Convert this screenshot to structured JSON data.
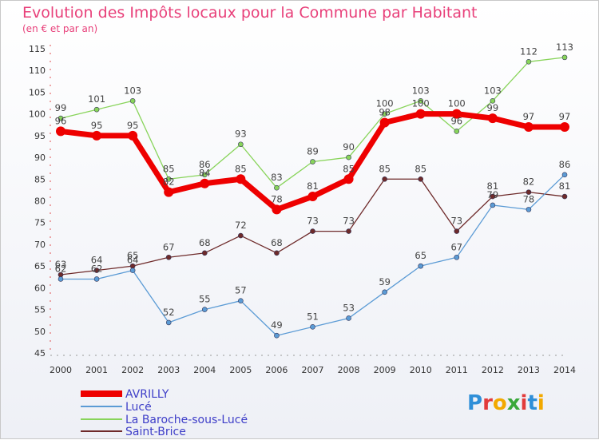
{
  "title": "Evolution des Impôts locaux pour la Commune par Habitant",
  "subtitle": "(en € et par an)",
  "logo": {
    "text": "Proxiti",
    "colors": [
      "#2f8fd8",
      "#e23b3b",
      "#f2a900",
      "#3aa83a",
      "#e23b3b",
      "#2f8fd8",
      "#f2a900"
    ]
  },
  "chart_data": {
    "type": "line",
    "x": [
      "2000",
      "2001",
      "2002",
      "2003",
      "2004",
      "2005",
      "2006",
      "2007",
      "2008",
      "2009",
      "2010",
      "2011",
      "2012",
      "2013",
      "2014"
    ],
    "ylim": [
      45,
      115
    ],
    "yticks": [
      45,
      50,
      55,
      60,
      65,
      70,
      75,
      80,
      85,
      90,
      95,
      100,
      105,
      110,
      115
    ],
    "grid": false,
    "legend_position": "bottom-left",
    "series": [
      {
        "name": "AVRILLY",
        "color": "#ee0000",
        "width": 7,
        "marker": 6,
        "values": [
          96,
          95,
          95,
          82,
          84,
          85,
          78,
          81,
          85,
          98,
          100,
          100,
          99,
          97,
          97
        ]
      },
      {
        "name": "Lucé",
        "color": "#5b9bd5",
        "width": 1.3,
        "marker": 3,
        "values": [
          62,
          62,
          64,
          52,
          55,
          57,
          49,
          51,
          53,
          59,
          65,
          67,
          79,
          78,
          86
        ]
      },
      {
        "name": "La Baroche-sous-Lucé",
        "color": "#88d45a",
        "width": 1.3,
        "marker": 3,
        "values": [
          99,
          101,
          103,
          85,
          86,
          93,
          83,
          89,
          90,
          100,
          103,
          96,
          103,
          112,
          113
        ]
      },
      {
        "name": "Saint-Brice",
        "color": "#6e2a2a",
        "width": 1.3,
        "marker": 3,
        "values": [
          63,
          64,
          65,
          67,
          68,
          72,
          68,
          73,
          73,
          85,
          85,
          73,
          81,
          82,
          81
        ]
      }
    ]
  }
}
